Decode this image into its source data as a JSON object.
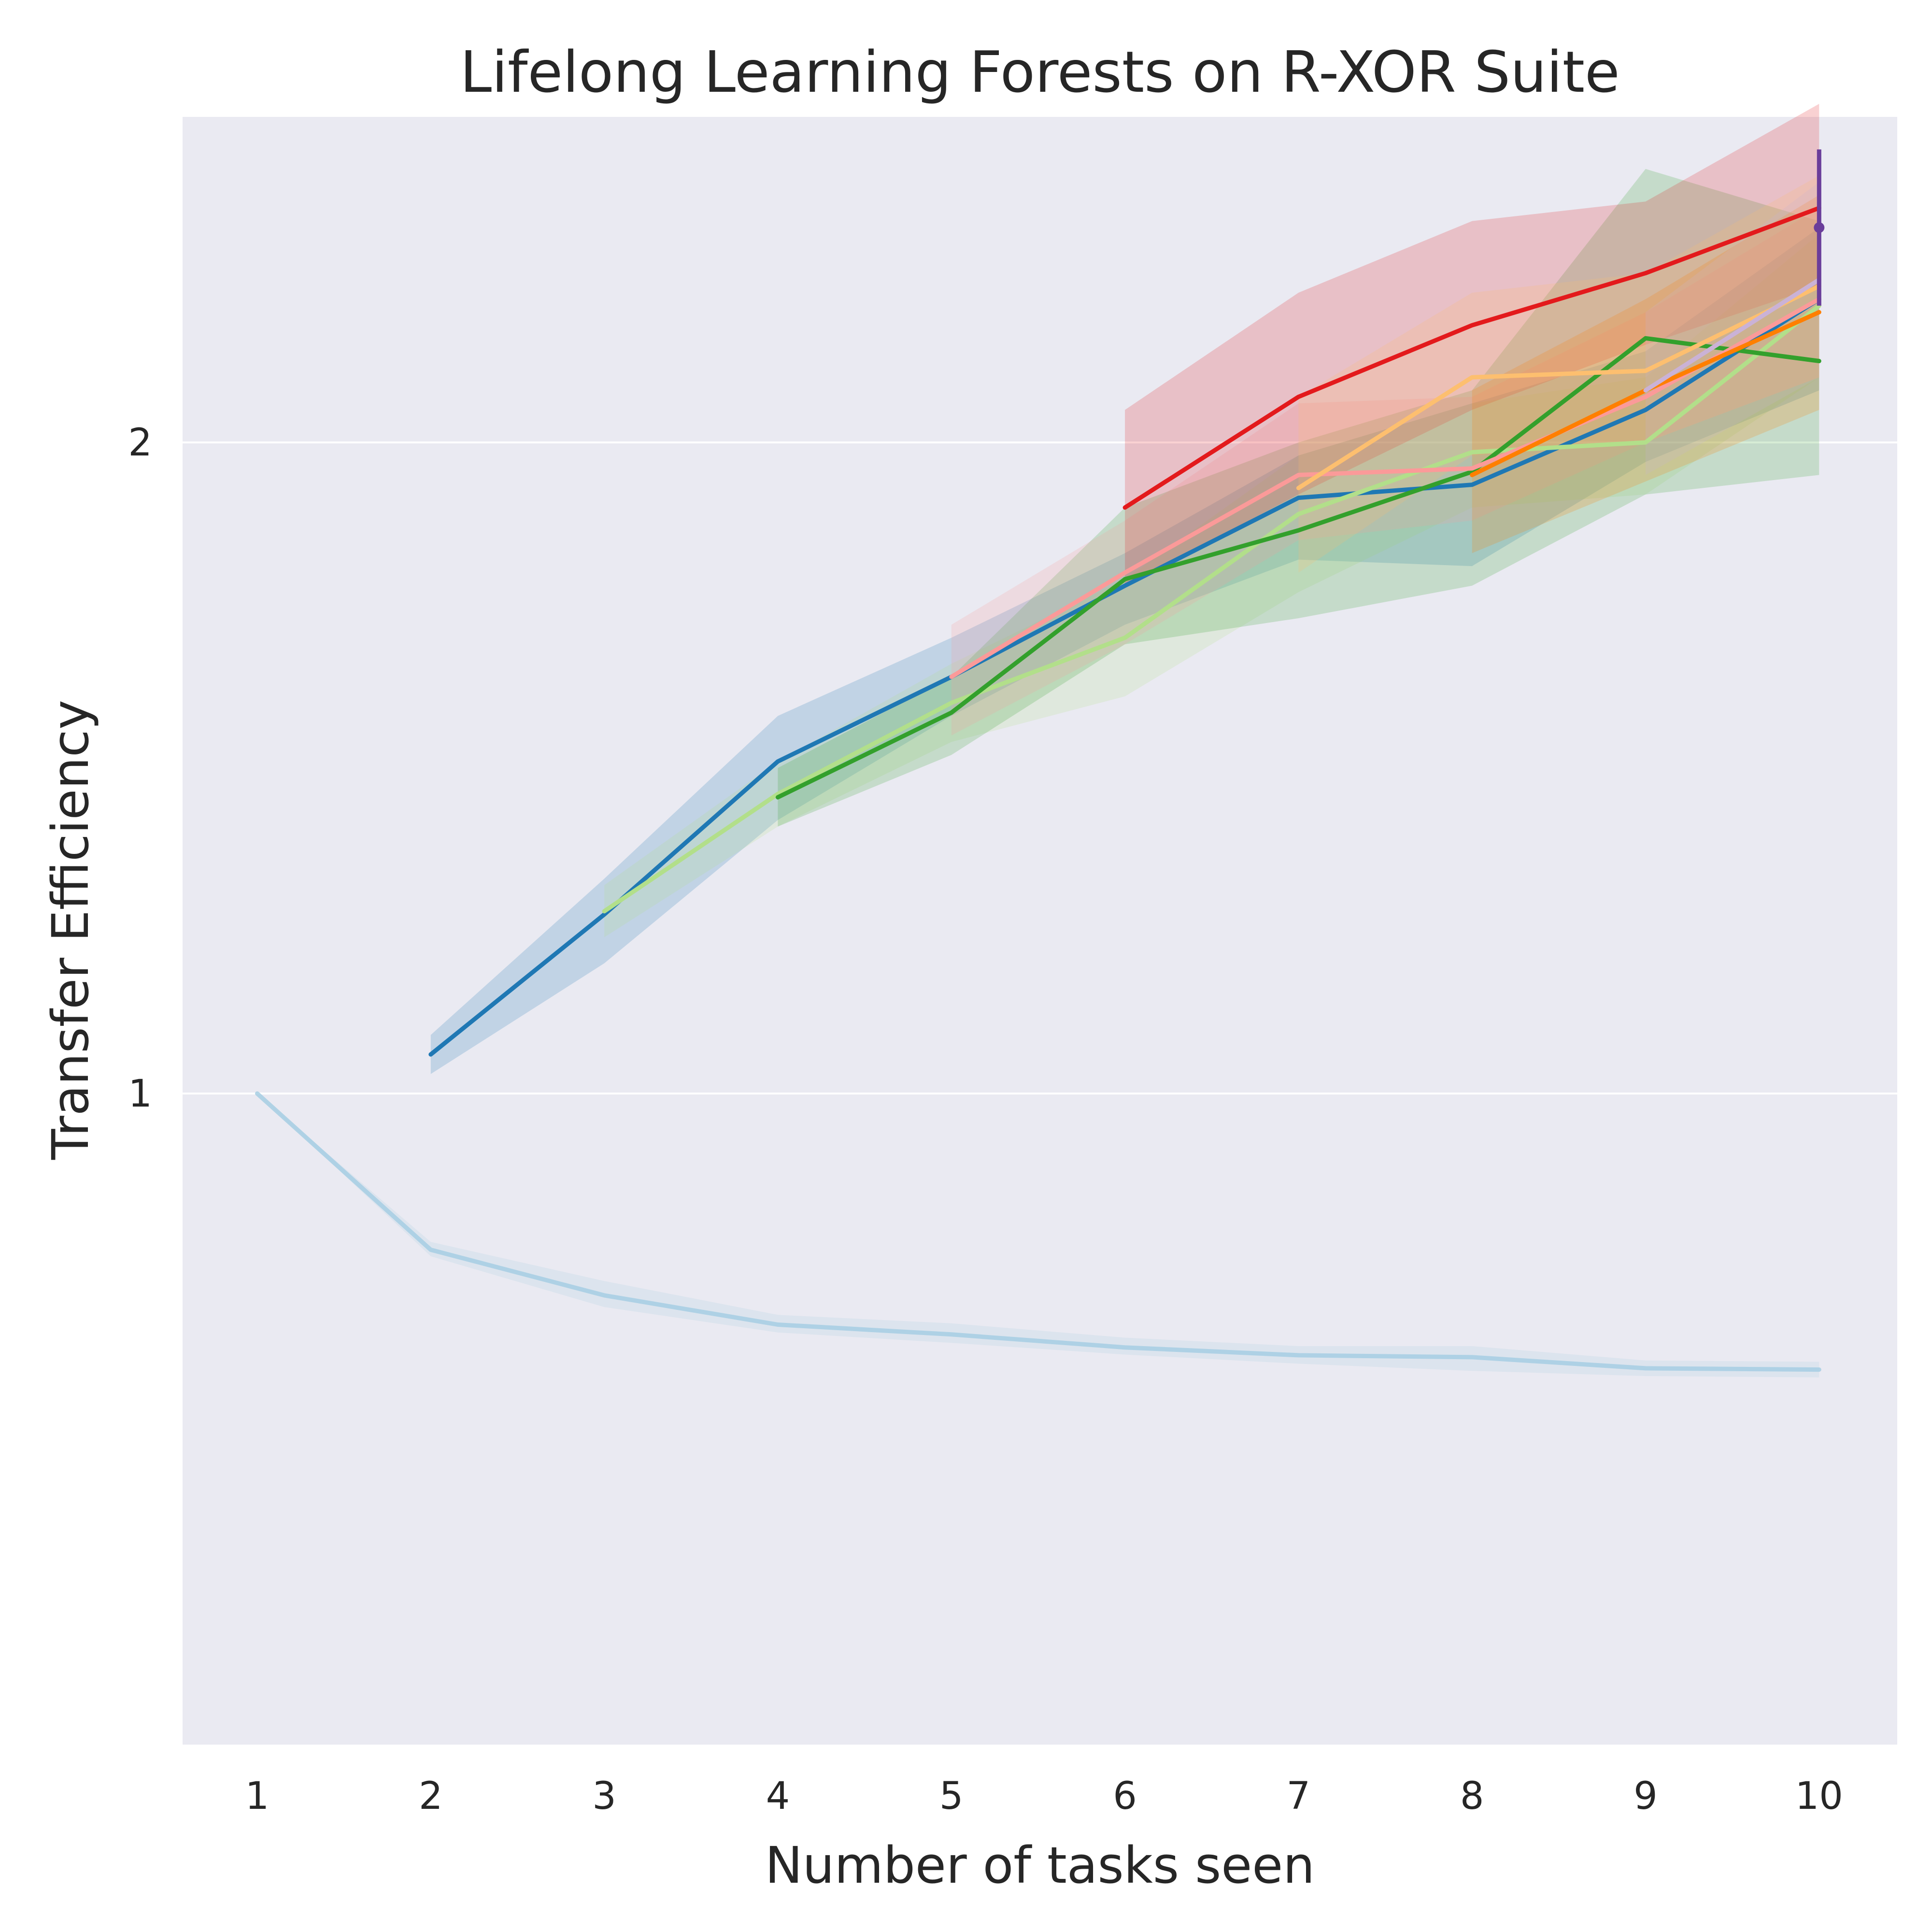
{
  "chart_data": {
    "type": "line",
    "title": "Lifelong Learning Forests on R-XOR Suite",
    "xlabel": "Number of tasks seen",
    "ylabel": "Transfer Efficiency",
    "xticks": [
      "1",
      "2",
      "3",
      "4",
      "5",
      "6",
      "7",
      "8",
      "9",
      "10"
    ],
    "yticks": [
      "1",
      "2"
    ],
    "xlim": [
      0.57,
      10.45
    ],
    "ylim": [
      0,
      2.5
    ],
    "log_scale_y": true,
    "grid": "horizontal",
    "legend": "none",
    "series": [
      {
        "color": "#a6cee3",
        "opacity": 0.85,
        "x": [
          1,
          2,
          3,
          4,
          5,
          6,
          7,
          8,
          9,
          10
        ],
        "values": [
          1.0,
          0.76,
          0.69,
          0.645,
          0.63,
          0.61,
          0.598,
          0.595,
          0.578,
          0.576
        ],
        "lower": [
          1.0,
          0.75,
          0.672,
          0.633,
          0.617,
          0.599,
          0.585,
          0.574,
          0.566,
          0.564
        ],
        "upper": [
          1.0,
          0.772,
          0.712,
          0.66,
          0.647,
          0.625,
          0.612,
          0.612,
          0.59,
          0.588
        ]
      },
      {
        "color": "#1f78b4",
        "opacity": 1,
        "x": [
          2,
          3,
          4,
          5,
          6,
          7,
          8,
          9,
          10
        ],
        "values": [
          1.06,
          1.275,
          1.51,
          1.64,
          1.78,
          1.915,
          1.935,
          2.05,
          2.22
        ],
        "lower": [
          1.03,
          1.2,
          1.42,
          1.58,
          1.72,
          1.82,
          1.81,
          1.97,
          2.08
        ],
        "upper": [
          1.09,
          1.33,
          1.58,
          1.7,
          1.83,
          1.98,
          2.06,
          2.14,
          2.33
        ]
      },
      {
        "color": "#b2df8a",
        "opacity": 1,
        "x": [
          3,
          4,
          5,
          6,
          7,
          8,
          9,
          10
        ],
        "values": [
          1.28,
          1.46,
          1.6,
          1.7,
          1.89,
          1.985,
          2.0,
          2.21
        ],
        "lower": [
          1.24,
          1.41,
          1.54,
          1.61,
          1.77,
          1.9,
          1.92,
          2.1
        ],
        "upper": [
          1.32,
          1.51,
          1.66,
          1.79,
          1.98,
          2.06,
          2.1,
          2.32
        ]
      },
      {
        "color": "#33a02c",
        "opacity": 1,
        "x": [
          4,
          5,
          6,
          7,
          8,
          9,
          10
        ],
        "values": [
          1.455,
          1.585,
          1.79,
          1.865,
          1.955,
          2.16,
          2.125
        ],
        "lower": [
          1.41,
          1.52,
          1.69,
          1.73,
          1.78,
          1.92,
          1.95
        ],
        "upper": [
          1.5,
          1.64,
          1.9,
          2.0,
          2.08,
          2.42,
          2.34
        ]
      },
      {
        "color": "#fb9a99",
        "opacity": 1,
        "x": [
          5,
          6,
          7,
          8,
          9,
          10
        ],
        "values": [
          1.64,
          1.8,
          1.95,
          1.96,
          2.07,
          2.22
        ],
        "lower": [
          1.55,
          1.69,
          1.85,
          1.88,
          2.0,
          2.1
        ],
        "upper": [
          1.72,
          1.88,
          2.06,
          2.07,
          2.2,
          2.36
        ]
      },
      {
        "color": "#e31a1c",
        "opacity": 1,
        "x": [
          6,
          7,
          8,
          9,
          10
        ],
        "values": [
          1.9,
          2.07,
          2.18,
          2.26,
          2.36
        ],
        "lower": [
          1.78,
          1.92,
          2.05,
          2.15,
          2.24
        ],
        "upper": [
          2.05,
          2.23,
          2.34,
          2.37,
          2.52
        ]
      },
      {
        "color": "#fdbf6f",
        "opacity": 1,
        "x": [
          7,
          8,
          9,
          10
        ],
        "values": [
          1.93,
          2.1,
          2.11,
          2.24
        ],
        "lower": [
          1.8,
          1.98,
          2.0,
          2.1
        ],
        "upper": [
          2.07,
          2.23,
          2.26,
          2.41
        ]
      },
      {
        "color": "#ff7f00",
        "opacity": 1,
        "x": [
          8,
          9,
          10
        ],
        "values": [
          1.95,
          2.08,
          2.2
        ],
        "lower": [
          1.83,
          1.94,
          2.05
        ],
        "upper": [
          2.08,
          2.22,
          2.38
        ]
      },
      {
        "color": "#cab2d6",
        "opacity": 1,
        "x": [
          9,
          10
        ],
        "values": [
          2.08,
          2.25
        ],
        "lower": [
          1.95,
          2.1
        ],
        "upper": [
          2.2,
          2.4
        ]
      },
      {
        "color": "#6a3d9a",
        "opacity": 1,
        "x": [
          10
        ],
        "values": [
          2.33
        ],
        "lower": [
          2.21
        ],
        "upper": [
          2.45
        ]
      }
    ]
  }
}
